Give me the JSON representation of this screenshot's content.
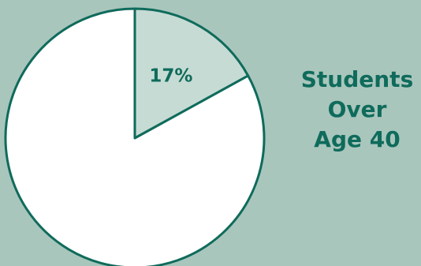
{
  "chart_data": {
    "type": "pie",
    "title": "Students Over Age 40",
    "title_lines": [
      "Students",
      "Over",
      "Age 40"
    ],
    "slices": [
      {
        "label": "17%",
        "value": 17,
        "color": "#c6dbd4"
      },
      {
        "label": "",
        "value": 83,
        "color": "#ffffff"
      }
    ],
    "colors": {
      "background": "#a9c6bc",
      "outline": "#0f6b5b",
      "text": "#0f6b5b"
    }
  }
}
